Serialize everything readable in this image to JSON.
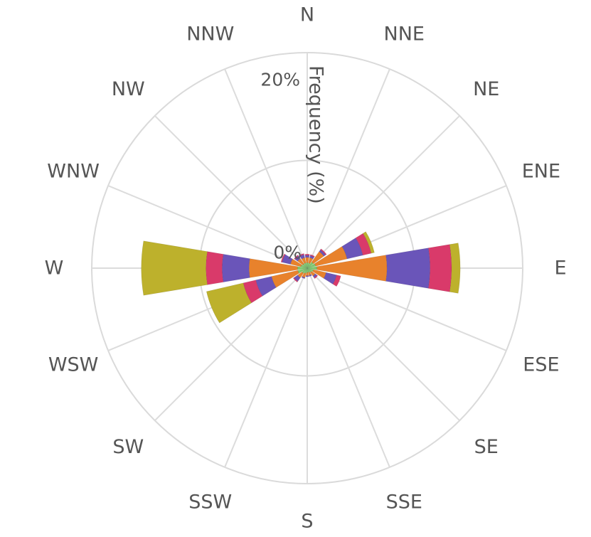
{
  "chart_data": {
    "type": "windrose",
    "directions": [
      "N",
      "NNE",
      "NE",
      "ENE",
      "E",
      "ESE",
      "SE",
      "SSE",
      "S",
      "SSW",
      "SW",
      "WSW",
      "W",
      "WNW",
      "NW",
      "NNW"
    ],
    "radial_axis": {
      "title": "Frequency (%)",
      "ticks": [
        0,
        20
      ],
      "tick_labels": [
        "0%",
        "20%"
      ],
      "range": [
        0,
        20
      ]
    },
    "series": [
      {
        "color": "#7cc96a",
        "values": [
          0.5,
          0.5,
          0.7,
          0.8,
          0.9,
          0.6,
          0.5,
          0.4,
          0.4,
          0.5,
          0.6,
          0.9,
          0.9,
          0.6,
          0.5,
          0.5
        ]
      },
      {
        "color": "#e8822c",
        "values": [
          0.5,
          0.5,
          1.2,
          3.0,
          6.5,
          1.2,
          0.4,
          0.3,
          0.3,
          0.4,
          0.5,
          2.5,
          4.5,
          1.0,
          0.6,
          0.5
        ]
      },
      {
        "color": "#6a55b9",
        "values": [
          0.2,
          0.2,
          0.2,
          1.5,
          4.0,
          1.0,
          0.2,
          0.1,
          0.1,
          0.1,
          0.4,
          1.5,
          2.5,
          0.8,
          0.3,
          0.3
        ]
      },
      {
        "color": "#d93a6a",
        "values": [
          0.1,
          0.1,
          0.1,
          0.8,
          2.0,
          0.4,
          0.1,
          0.0,
          0.0,
          0.0,
          0.1,
          1.2,
          1.5,
          0.1,
          0.1,
          0.1
        ]
      },
      {
        "color": "#bdb12c",
        "values": [
          0.0,
          0.0,
          0.0,
          0.3,
          0.8,
          0.0,
          0.0,
          0.0,
          0.0,
          0.0,
          0.0,
          3.5,
          6.0,
          0.0,
          0.0,
          0.0
        ]
      }
    ],
    "grid": true
  }
}
